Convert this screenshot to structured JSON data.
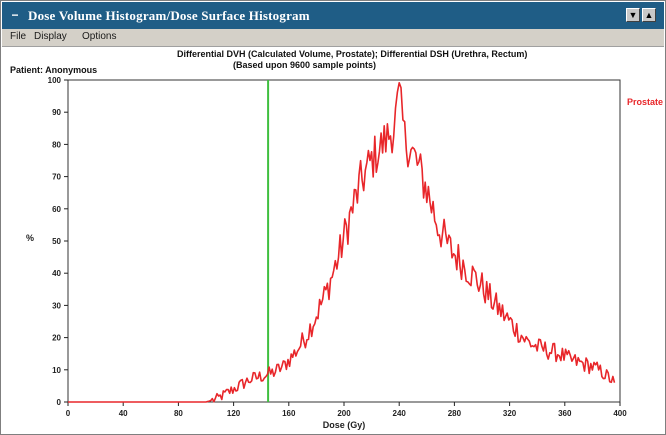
{
  "window": {
    "title": "Dose Volume Histogram/Dose Surface Histogram",
    "sys_menu_glyph": "−",
    "buttons": [
      "▼",
      "▲"
    ]
  },
  "menu": {
    "items": [
      "File",
      "Display",
      "Options"
    ]
  },
  "header": {
    "title_line1": "Differential DVH (Calculated Volume, Prostate); Differential DSH (Urethra, Rectum)",
    "title_line2": "(Based upon 9600 sample points)",
    "patient": "Patient: Anonymous"
  },
  "chart_data": {
    "type": "line",
    "xlabel": "Dose (Gy)",
    "ylabel": "%",
    "xlim": [
      0,
      400
    ],
    "ylim": [
      0,
      100
    ],
    "xticks": [
      0,
      40,
      80,
      120,
      160,
      200,
      240,
      280,
      320,
      360,
      400
    ],
    "yticks": [
      0,
      10,
      20,
      30,
      40,
      50,
      60,
      70,
      80,
      90,
      100
    ],
    "reference_line": {
      "x": 145,
      "color": "#3fbf3f"
    },
    "series": [
      {
        "name": "Prostate",
        "color": "#e8262a",
        "x": [
          0,
          100,
          108,
          116,
          124,
          132,
          140,
          148,
          156,
          164,
          172,
          180,
          188,
          196,
          204,
          212,
          220,
          228,
          236,
          240,
          244,
          252,
          260,
          268,
          276,
          284,
          292,
          300,
          308,
          316,
          324,
          332,
          340,
          348,
          356,
          364,
          372,
          380,
          388,
          396
        ],
        "values": [
          0,
          0,
          1,
          3,
          5,
          7,
          8,
          9,
          11,
          15,
          20,
          27,
          35,
          45,
          57,
          68,
          75,
          80,
          85,
          95,
          82,
          75,
          66,
          55,
          48,
          44,
          40,
          36,
          31,
          27,
          23,
          19,
          17,
          16,
          15,
          13,
          12,
          11,
          9,
          6
        ]
      }
    ]
  }
}
